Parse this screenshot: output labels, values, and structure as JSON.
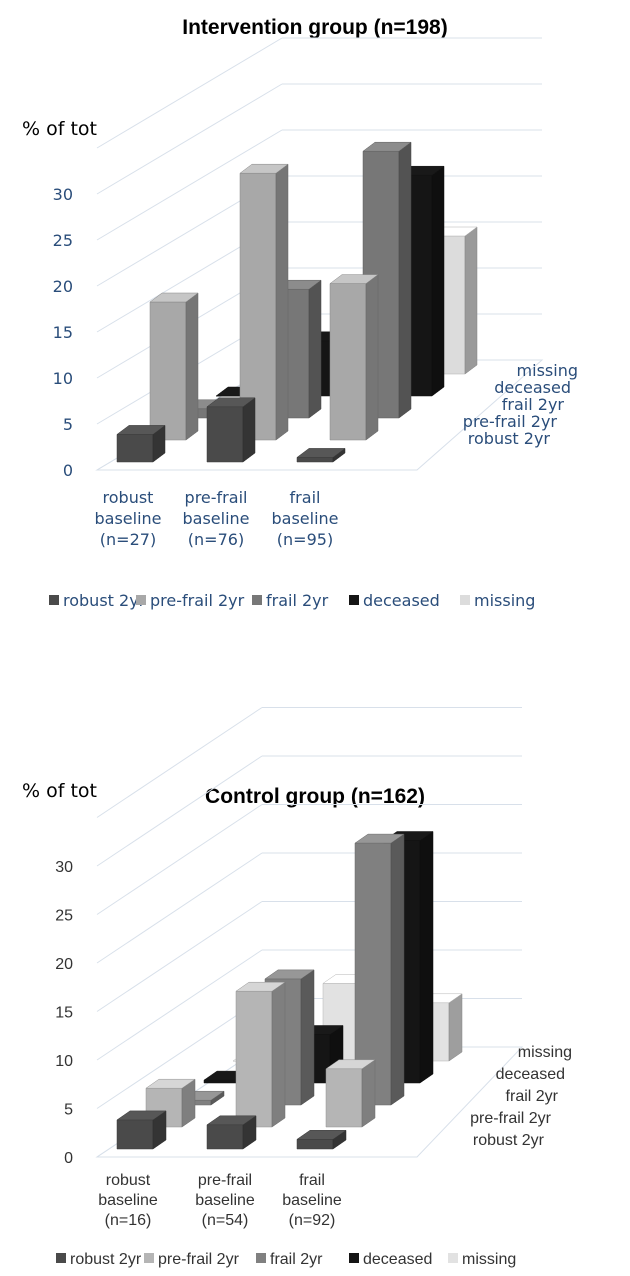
{
  "chart_data": [
    {
      "type": "bar",
      "title": "Intervention group (n=198)",
      "ylabel": "% of tot",
      "ylim": [
        0,
        30
      ],
      "yticks": [
        "0",
        "5",
        "10",
        "15",
        "20",
        "25",
        "30"
      ],
      "categories": [
        [
          "robust",
          "baseline",
          "(n=27)"
        ],
        [
          "pre-frail",
          "baseline",
          "(n=76)"
        ],
        [
          "frail",
          "baseline",
          "(n=95)"
        ]
      ],
      "depth_labels": [
        "robust 2yr",
        "pre-frail 2yr",
        "frail 2yr",
        "deceased",
        "missing"
      ],
      "series": [
        {
          "name": "robust 2yr",
          "values": [
            3,
            6,
            0.5
          ]
        },
        {
          "name": "pre-frail 2yr",
          "values": [
            15,
            29,
            17
          ]
        },
        {
          "name": "frail 2yr",
          "values": [
            1,
            14,
            29
          ]
        },
        {
          "name": "deceased",
          "values": [
            0,
            6,
            24
          ]
        },
        {
          "name": "missing",
          "values": [
            0,
            0,
            15
          ]
        }
      ],
      "legend": [
        "robust 2yr",
        "pre-frail 2yr",
        "frail 2yr",
        "deceased",
        "missing"
      ],
      "legend_position": "bottom",
      "colors": [
        "#4a4a4a",
        "#a8a8a8",
        "#777777",
        "#151515",
        "#dcdcdc"
      ]
    },
    {
      "type": "bar",
      "title": "Control group (n=162)",
      "ylabel": "% of tot",
      "ylim": [
        0,
        30
      ],
      "yticks": [
        "0",
        "5",
        "10",
        "15",
        "20",
        "25",
        "30"
      ],
      "categories": [
        [
          "robust",
          "baseline",
          "(n=16)"
        ],
        [
          "pre-frail",
          "baseline",
          "(n=54)"
        ],
        [
          "frail",
          "baseline",
          "(n=92)"
        ]
      ],
      "depth_labels": [
        "robust 2yr",
        "pre-frail 2yr",
        "frail 2yr",
        "deceased",
        "missing"
      ],
      "series": [
        {
          "name": "robust 2yr",
          "values": [
            3,
            2.5,
            1
          ]
        },
        {
          "name": "pre-frail 2yr",
          "values": [
            4,
            14,
            6
          ]
        },
        {
          "name": "frail 2yr",
          "values": [
            0.5,
            13,
            27
          ]
        },
        {
          "name": "deceased",
          "values": [
            0.3,
            5,
            25
          ]
        },
        {
          "name": "missing",
          "values": [
            0,
            8,
            6
          ]
        }
      ],
      "legend": [
        "robust 2yr",
        "pre-frail 2yr",
        "frail 2yr",
        "deceased",
        "missing"
      ],
      "legend_position": "bottom",
      "colors": [
        "#4a4a4a",
        "#b5b5b5",
        "#808080",
        "#151515",
        "#e2e2e2"
      ]
    }
  ]
}
